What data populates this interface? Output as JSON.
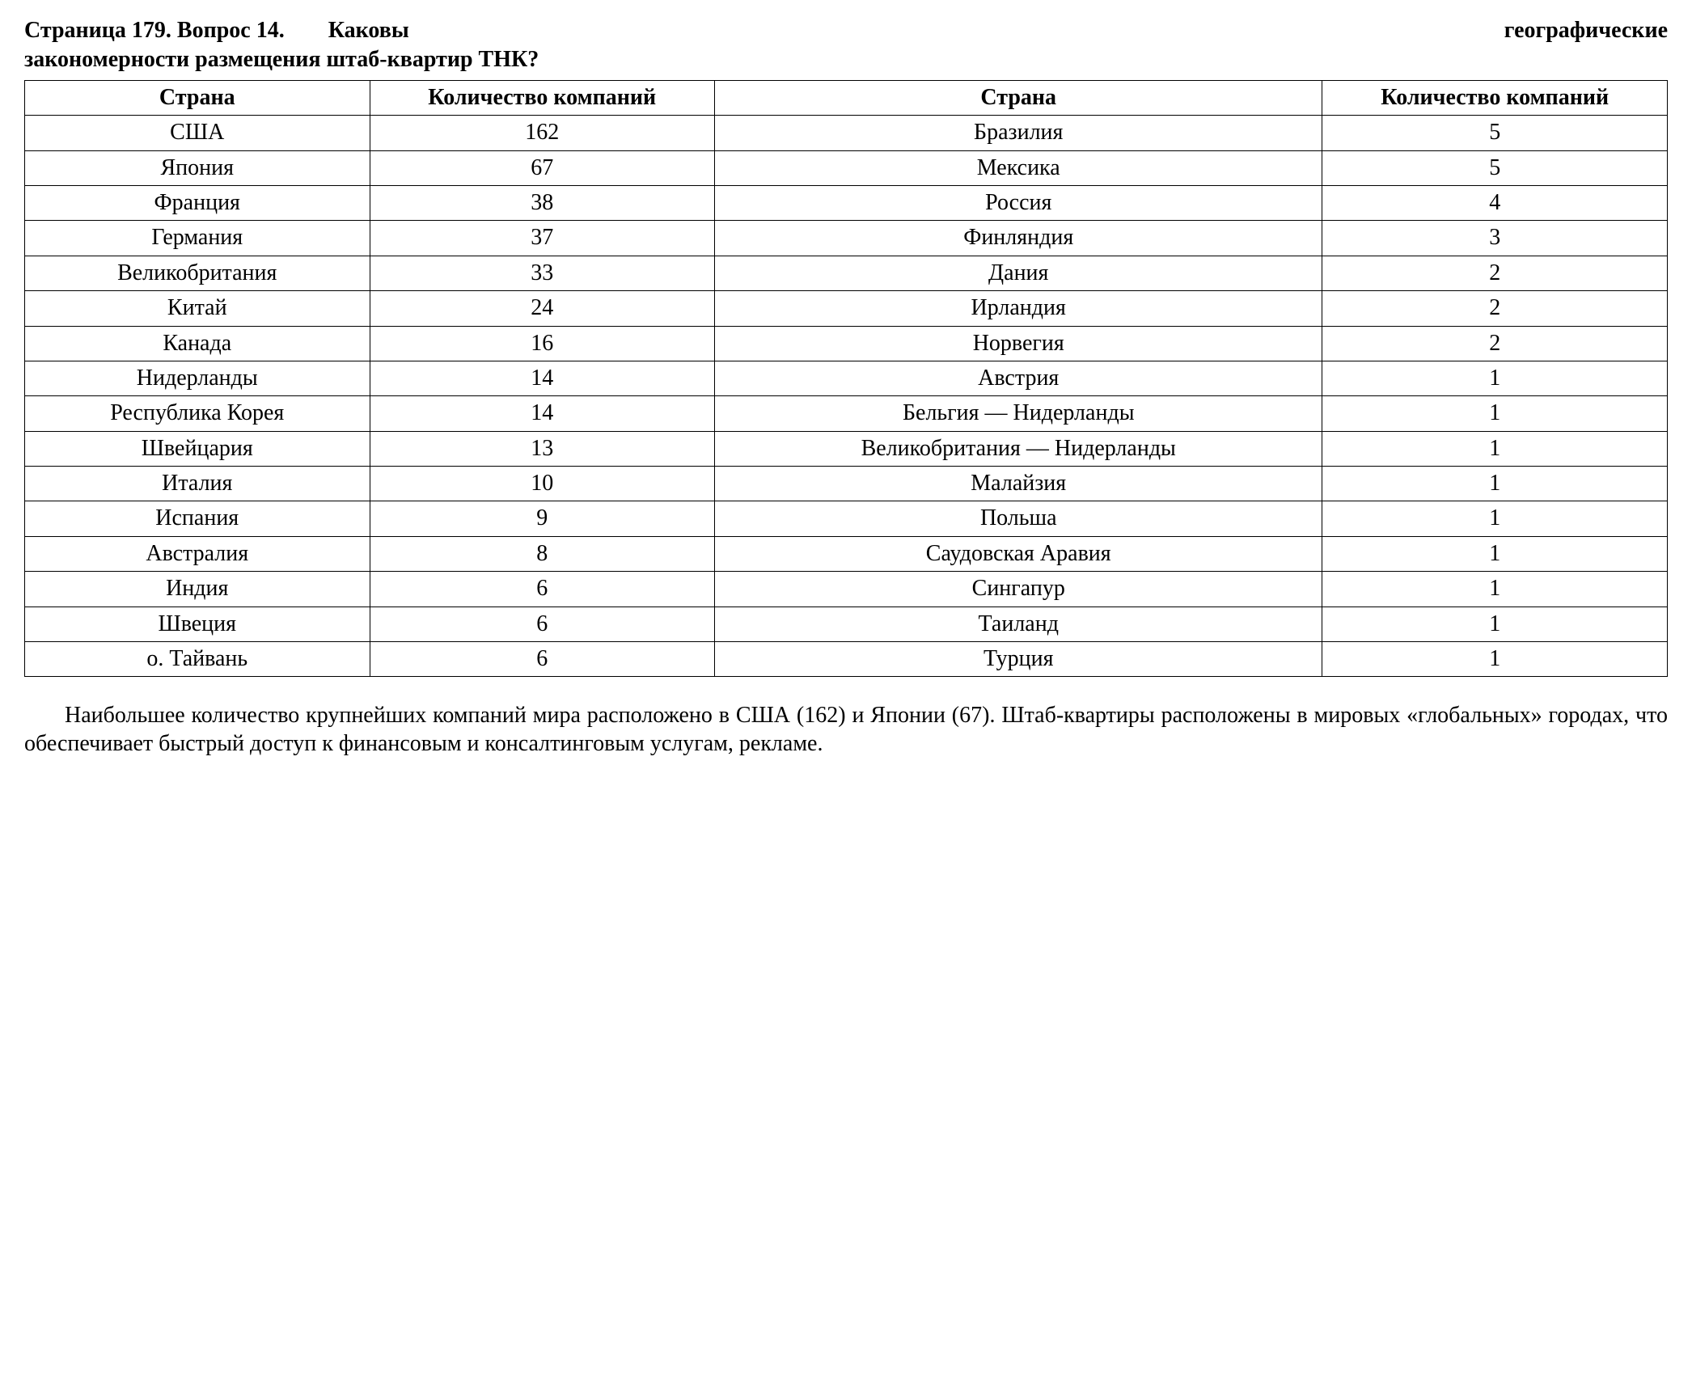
{
  "heading": {
    "line1_left": "Страница 179. Вопрос 14.",
    "line1_mid": "Каковы",
    "line1_right": "географические",
    "line2": "закономерности размещения штаб-квартир ТНК?"
  },
  "table": {
    "headers": {
      "country1": "Страна",
      "count1": "Количество компаний",
      "country2": "Страна",
      "count2": "Количество компаний"
    },
    "rows": [
      {
        "c1": "США",
        "v1": "162",
        "c2": "Бразилия",
        "v2": "5"
      },
      {
        "c1": "Япония",
        "v1": "67",
        "c2": "Мексика",
        "v2": "5"
      },
      {
        "c1": "Франция",
        "v1": "38",
        "c2": "Россия",
        "v2": "4"
      },
      {
        "c1": "Германия",
        "v1": "37",
        "c2": "Финляндия",
        "v2": "3"
      },
      {
        "c1": "Великобритания",
        "v1": "33",
        "c2": "Дания",
        "v2": "2"
      },
      {
        "c1": "Китай",
        "v1": "24",
        "c2": "Ирландия",
        "v2": "2"
      },
      {
        "c1": "Канада",
        "v1": "16",
        "c2": "Норвегия",
        "v2": "2"
      },
      {
        "c1": "Нидерланды",
        "v1": "14",
        "c2": "Австрия",
        "v2": "1"
      },
      {
        "c1": "Республика Корея",
        "v1": "14",
        "c2": "Бельгия — Нидерланды",
        "v2": "1"
      },
      {
        "c1": "Швейцария",
        "v1": "13",
        "c2": "Великобритания — Нидерланды",
        "v2": "1"
      },
      {
        "c1": "Италия",
        "v1": "10",
        "c2": "Малайзия",
        "v2": "1"
      },
      {
        "c1": "Испания",
        "v1": "9",
        "c2": "Польша",
        "v2": "1"
      },
      {
        "c1": "Австралия",
        "v1": "8",
        "c2": "Саудовская Аравия",
        "v2": "1"
      },
      {
        "c1": "Индия",
        "v1": "6",
        "c2": "Сингапур",
        "v2": "1"
      },
      {
        "c1": "Швеция",
        "v1": "6",
        "c2": "Таиланд",
        "v2": "1"
      },
      {
        "c1": "о. Тайвань",
        "v1": "6",
        "c2": "Турция",
        "v2": "1"
      }
    ]
  },
  "paragraph": "Наибольшее количество крупнейших компаний мира расположено в США (162) и Японии (67). Штаб-квартиры расположены в мировых «глобальных» городах, что обеспечивает быстрый доступ к финансовым и консалтинговым услугам, рекламе.",
  "styles": {
    "background_color": "#ffffff",
    "text_color": "#000000",
    "border_color": "#000000",
    "font_family": "Times New Roman",
    "base_fontsize": 28
  }
}
